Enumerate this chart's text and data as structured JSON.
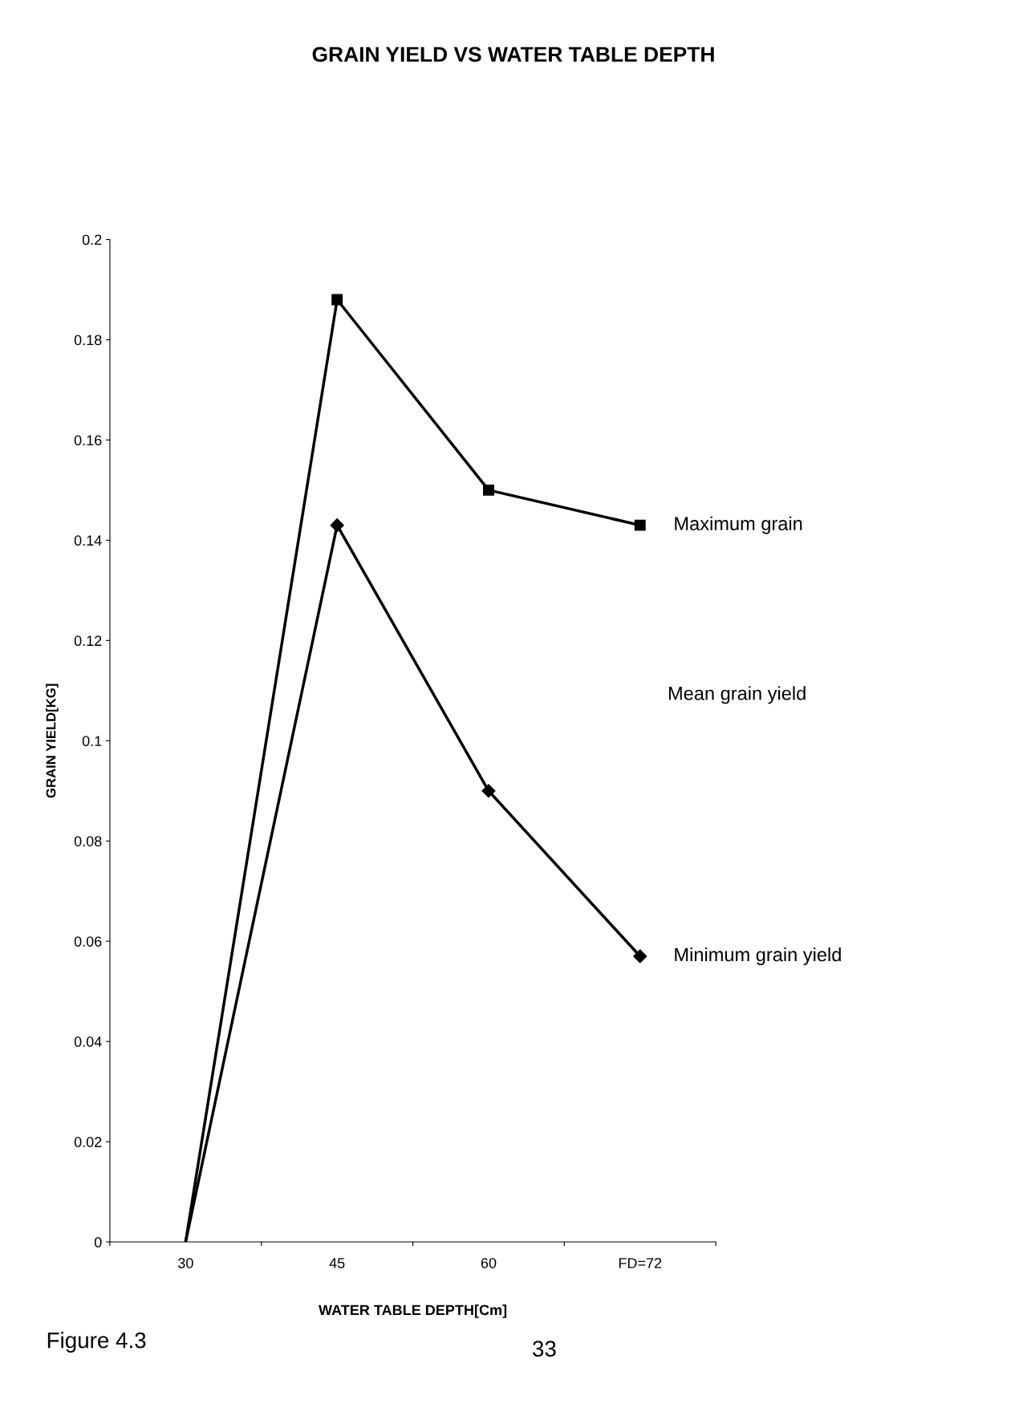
{
  "chart_data": {
    "type": "line",
    "title": "GRAIN YIELD VS WATER TABLE DEPTH",
    "xlabel": "WATER TABLE DEPTH[Cm]",
    "ylabel": "GRAIN YIELD[KG]",
    "categories": [
      "30",
      "45",
      "60",
      "FD=72"
    ],
    "series": [
      {
        "name": "Maximum grain",
        "color": "#000000",
        "marker": "square",
        "values": [
          0,
          0.188,
          0.15,
          0.143
        ]
      },
      {
        "name": "Minimum grain yield",
        "color": "#000000",
        "marker": "diamond",
        "values": [
          0,
          0.143,
          0.09,
          0.057
        ]
      }
    ],
    "ylim": [
      0,
      0.2
    ],
    "yticks": [
      0,
      0.02,
      0.04,
      0.06,
      0.08,
      0.1,
      0.12,
      0.14,
      0.16,
      0.18,
      0.2
    ],
    "grid": false,
    "legend": false,
    "line_style": "solid",
    "annotations": [
      "Mean grain yield",
      "Figure 4.3",
      "33"
    ]
  }
}
